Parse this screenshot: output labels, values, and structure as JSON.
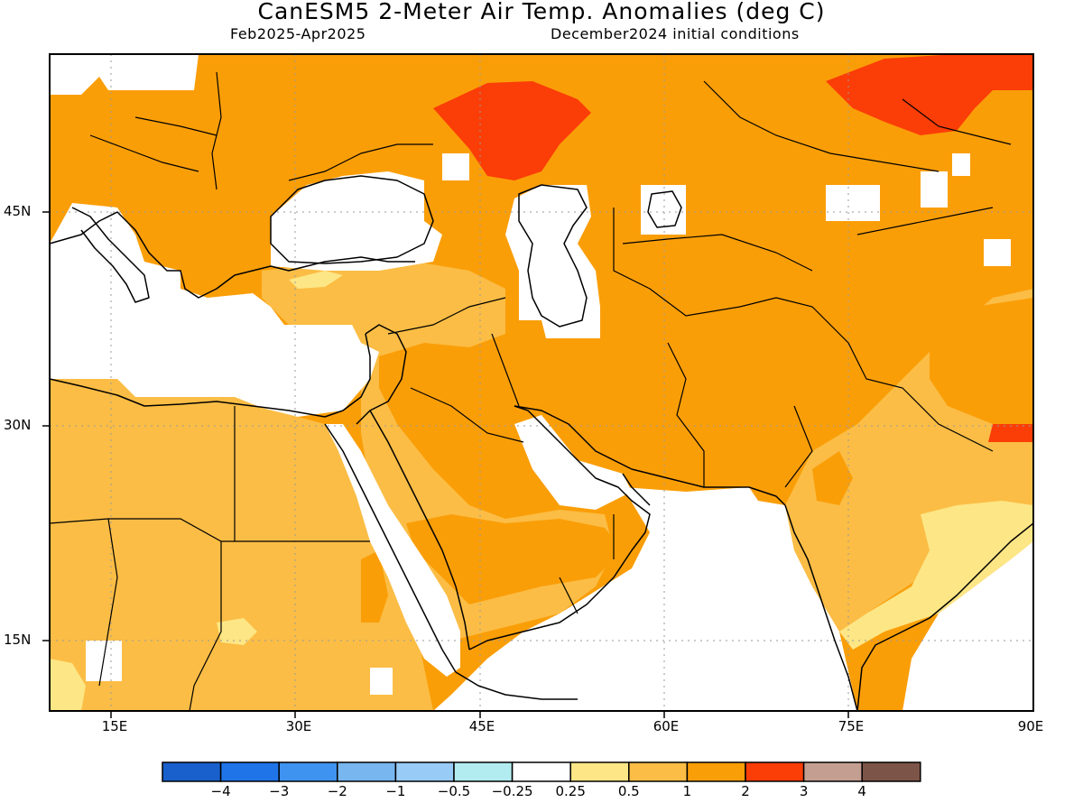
{
  "title": "CanESM5 2-Meter Air Temp. Anomalies (deg C)",
  "period": "Feb2025-Apr2025",
  "initial_conditions": "December2024 initial conditions",
  "map": {
    "lon_range": [
      10,
      90
    ],
    "lat_range": [
      10,
      56
    ],
    "lat_labels": [
      "45N",
      "30N",
      "15N"
    ],
    "lon_labels": [
      "15E",
      "30E",
      "45E",
      "60E",
      "75E",
      "90E"
    ],
    "region_anomalies": [
      {
        "region": "Western/Central Europe",
        "category": "1 to 2"
      },
      {
        "region": "Volga / north Caspian",
        "category": "2 to 3"
      },
      {
        "region": "Central Siberia (north-east)",
        "category": "2 to 3"
      },
      {
        "region": "Eastern Mediterranean / Black Sea",
        "category": "-0.25 to 0.25"
      },
      {
        "region": "Turkey / Levant",
        "category": "0.5 to 1"
      },
      {
        "region": "North Africa / Sahara",
        "category": "0.5 to 1"
      },
      {
        "region": "Arabian Peninsula interior",
        "category": "1 to 2"
      },
      {
        "region": "Iran / Central Asia",
        "category": "1 to 2"
      },
      {
        "region": "Tibet southern edge",
        "category": "2 to 3"
      },
      {
        "region": "India east coast",
        "category": "0.25 to 0.5"
      },
      {
        "region": "Arabian Sea / Indian Ocean",
        "category": "-0.25 to 0.25"
      }
    ]
  },
  "colorbar": {
    "colors": [
      "#1960cc",
      "#1f74e8",
      "#3f93f0",
      "#78b6ef",
      "#98cbf5",
      "#b2ecf0",
      "#ffffff",
      "#fde685",
      "#fbbd45",
      "#fa9e08",
      "#fb3d07",
      "#c49f91",
      "#7d5548"
    ],
    "labels": [
      "-4",
      "-3",
      "-2",
      "-1",
      "-0.5",
      "-0.25",
      "0.25",
      "0.5",
      "1",
      "2",
      "3",
      "4"
    ]
  }
}
